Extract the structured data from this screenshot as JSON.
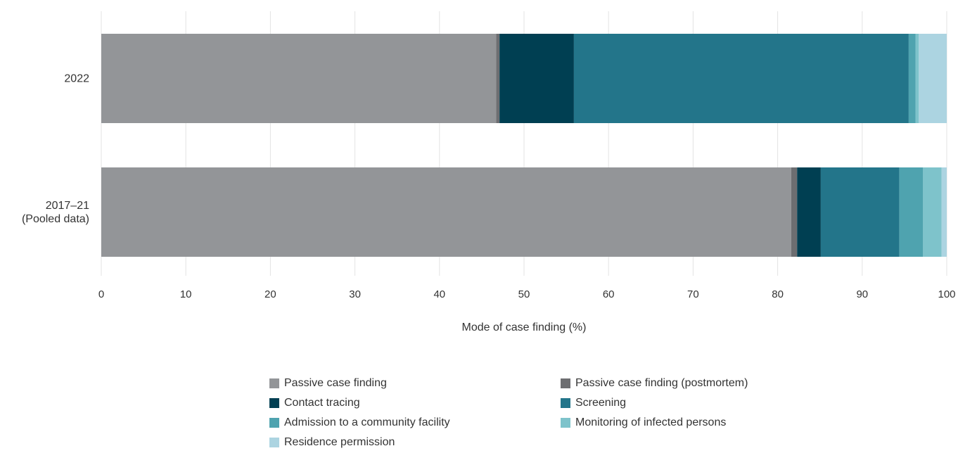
{
  "chart_data": {
    "type": "bar",
    "orientation": "horizontal",
    "stacked": true,
    "categories": [
      "2022",
      "2017–21\n(Pooled data)"
    ],
    "series": [
      {
        "name": "Passive case finding",
        "color": "#939598",
        "values": [
          46.7,
          81.6
        ]
      },
      {
        "name": "Passive case finding (postmortem)",
        "color": "#6d6e71",
        "values": [
          0.4,
          0.7
        ]
      },
      {
        "name": "Contact tracing",
        "color": "#003f52",
        "values": [
          8.8,
          2.8
        ]
      },
      {
        "name": "Screening",
        "color": "#23758a",
        "values": [
          39.6,
          9.3
        ]
      },
      {
        "name": "Admission to a community facility",
        "color": "#4fa3af",
        "values": [
          0.8,
          2.8
        ]
      },
      {
        "name": "Monitoring of infected persons",
        "color": "#7ec3cb",
        "values": [
          0.4,
          2.2
        ]
      },
      {
        "name": "Residence permission",
        "color": "#acd4e1",
        "values": [
          3.3,
          0.6
        ]
      }
    ],
    "xlabel": "Mode of case finding (%)",
    "ylabel": "",
    "xlim": [
      0,
      100
    ],
    "xticks": [
      0,
      10,
      20,
      30,
      40,
      50,
      60,
      70,
      80,
      90,
      100
    ],
    "grid": "vertical",
    "legend_position": "bottom"
  }
}
